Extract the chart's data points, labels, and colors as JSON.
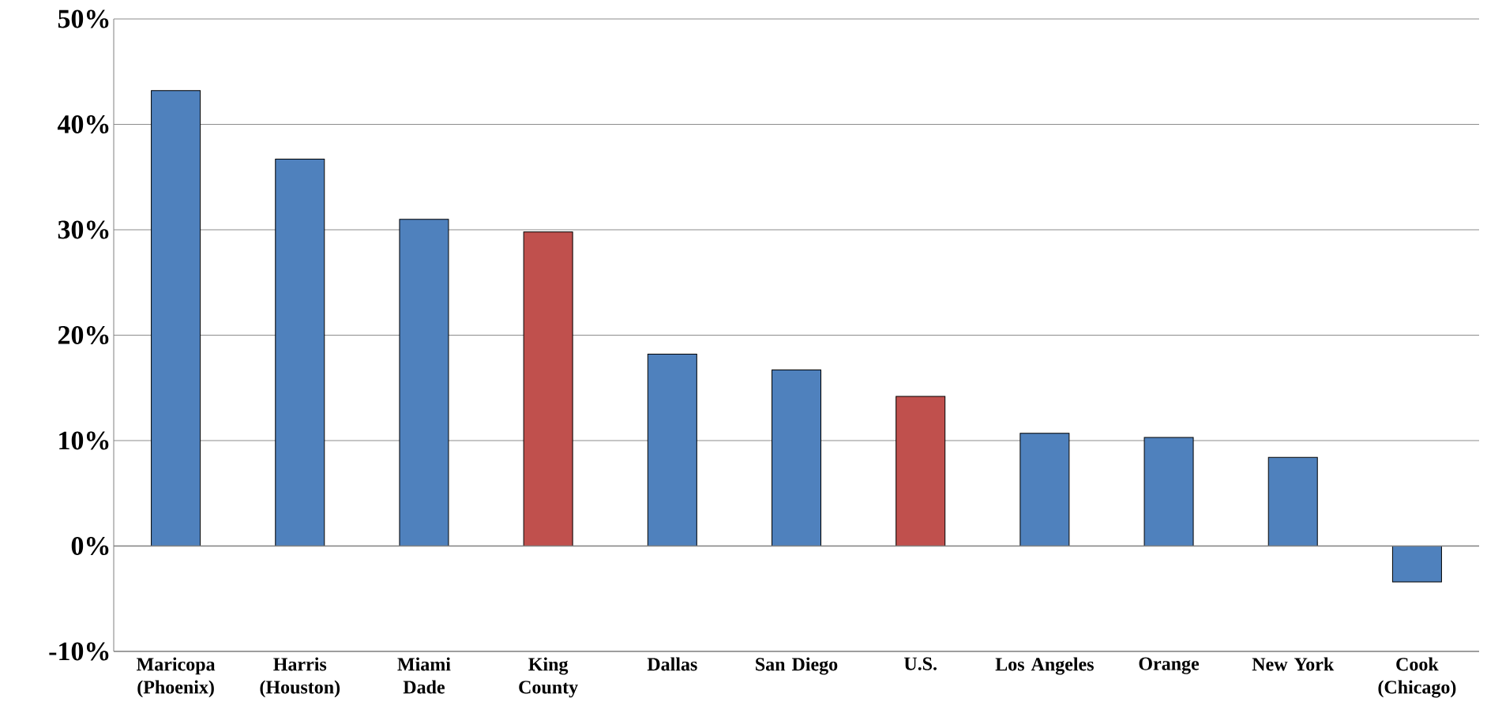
{
  "chart_data": {
    "type": "bar",
    "categories": [
      "Maricopa (Phoenix)",
      "Harris (Houston)",
      "Miami Dade",
      "King County",
      "Dallas",
      "San Diego",
      "U.S.",
      "Los Angeles",
      "Orange",
      "New York",
      "Cook (Chicago)"
    ],
    "values": [
      43.2,
      36.7,
      31.0,
      29.8,
      18.2,
      16.7,
      14.2,
      10.7,
      10.3,
      8.4,
      -3.4
    ],
    "colors": [
      "#4f81bd",
      "#4f81bd",
      "#4f81bd",
      "#c0504d",
      "#4f81bd",
      "#4f81bd",
      "#c0504d",
      "#4f81bd",
      "#4f81bd",
      "#4f81bd",
      "#4f81bd"
    ],
    "ylim": [
      -10,
      50
    ],
    "yticks": [
      {
        "value": -10,
        "label": "-10%"
      },
      {
        "value": 0,
        "label": "0%"
      },
      {
        "value": 10,
        "label": "10%"
      },
      {
        "value": 20,
        "label": "20%"
      },
      {
        "value": 30,
        "label": "30%"
      },
      {
        "value": 40,
        "label": "40%"
      },
      {
        "value": 50,
        "label": "50%"
      }
    ],
    "grid": "y"
  }
}
